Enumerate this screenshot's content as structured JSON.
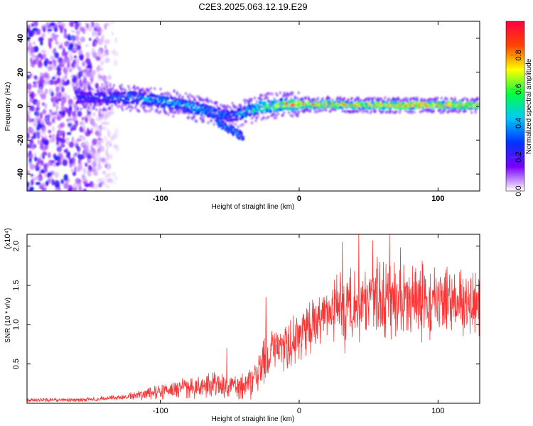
{
  "title": "C2E3.2025.063.12.19.E29",
  "chart_data": [
    {
      "type": "heatmap",
      "xlabel": "Height of straight line (km)",
      "ylabel": "Frequency (Hz)",
      "xlim": [
        -196,
        130
      ],
      "ylim": [
        -50,
        50
      ],
      "x_ticks": [
        -100,
        0,
        100
      ],
      "x_tick_labels": [
        "-100",
        "0",
        "100"
      ],
      "y_ticks": [
        -40,
        -20,
        0,
        20,
        40
      ],
      "y_tick_labels": [
        "-40",
        "-20",
        "0",
        "20",
        "40"
      ],
      "colorbar": {
        "label": "Normalized spectral amplitude",
        "range": [
          0,
          1
        ],
        "ticks": [
          0.0,
          0.2,
          0.4,
          0.6,
          0.8
        ],
        "tick_labels": [
          "0.0",
          "0.2",
          "0.4",
          "0.6",
          "0.8"
        ],
        "colormap": [
          "#ffffff",
          "#7a00ff",
          "#0033ff",
          "#00c8ff",
          "#00ff44",
          "#ffff00",
          "#ff4400",
          "#ff0044"
        ]
      },
      "ridge": {
        "x": [
          -160,
          -140,
          -120,
          -100,
          -80,
          -60,
          -50,
          -40,
          -30,
          -20,
          -10,
          0,
          20,
          40,
          60,
          80,
          100,
          130
        ],
        "frequency": [
          5,
          5,
          5,
          3,
          0,
          -4,
          -6,
          -4,
          -1,
          0,
          1,
          1,
          1,
          0.5,
          0.5,
          0.5,
          0.5,
          0.5
        ],
        "peak_amplitude": [
          0.3,
          0.35,
          0.45,
          0.5,
          0.5,
          0.45,
          0.4,
          0.5,
          0.65,
          0.75,
          0.85,
          0.9,
          0.95,
          0.95,
          0.95,
          0.95,
          0.95,
          0.9
        ]
      },
      "branch": {
        "x": [
          -60,
          -50,
          -40
        ],
        "frequency": [
          -8,
          -14,
          -18
        ]
      },
      "noise_region": {
        "x_range": [
          -196,
          -128
        ],
        "frequency_range": [
          -50,
          50
        ]
      },
      "grid": false
    },
    {
      "type": "line",
      "xlabel": "Height of straight line (km)",
      "ylabel": "SNR (10 * v/v)",
      "y_multiplier": "(x10⁴)",
      "xlim": [
        -196,
        130
      ],
      "ylim": [
        0,
        21500
      ],
      "x_ticks": [
        -100,
        0,
        100
      ],
      "x_tick_labels": [
        "-100",
        "0",
        "100"
      ],
      "y_ticks": [
        5000,
        10000,
        15000,
        20000
      ],
      "y_tick_labels": [
        "0.5",
        "1.0",
        "1.5",
        "2.0"
      ],
      "color": "#ff3333",
      "envelope": {
        "x": [
          -196,
          -160,
          -140,
          -120,
          -100,
          -80,
          -60,
          -50,
          -40,
          -30,
          -25,
          -20,
          -10,
          0,
          10,
          20,
          30,
          40,
          60,
          80,
          100,
          130
        ],
        "mean": [
          400,
          450,
          600,
          900,
          1500,
          2000,
          2300,
          2000,
          2000,
          3500,
          6000,
          6500,
          7500,
          8500,
          10000,
          11500,
          12000,
          13000,
          13000,
          13000,
          13000,
          13000
        ],
        "spread": [
          200,
          200,
          250,
          400,
          800,
          1100,
          1300,
          1500,
          1500,
          2000,
          2800,
          2600,
          2600,
          2800,
          3000,
          3500,
          4200,
          4500,
          4200,
          4000,
          3800,
          3200
        ]
      },
      "spikes": [
        {
          "x": -52,
          "y": 7000
        },
        {
          "x": -24,
          "y": 13500
        },
        {
          "x": 31,
          "y": 20500
        },
        {
          "x": 43,
          "y": 21500
        },
        {
          "x": 53,
          "y": 20700
        },
        {
          "x": 65,
          "y": 21500
        },
        {
          "x": 73,
          "y": 19800
        }
      ],
      "grid": false
    }
  ]
}
